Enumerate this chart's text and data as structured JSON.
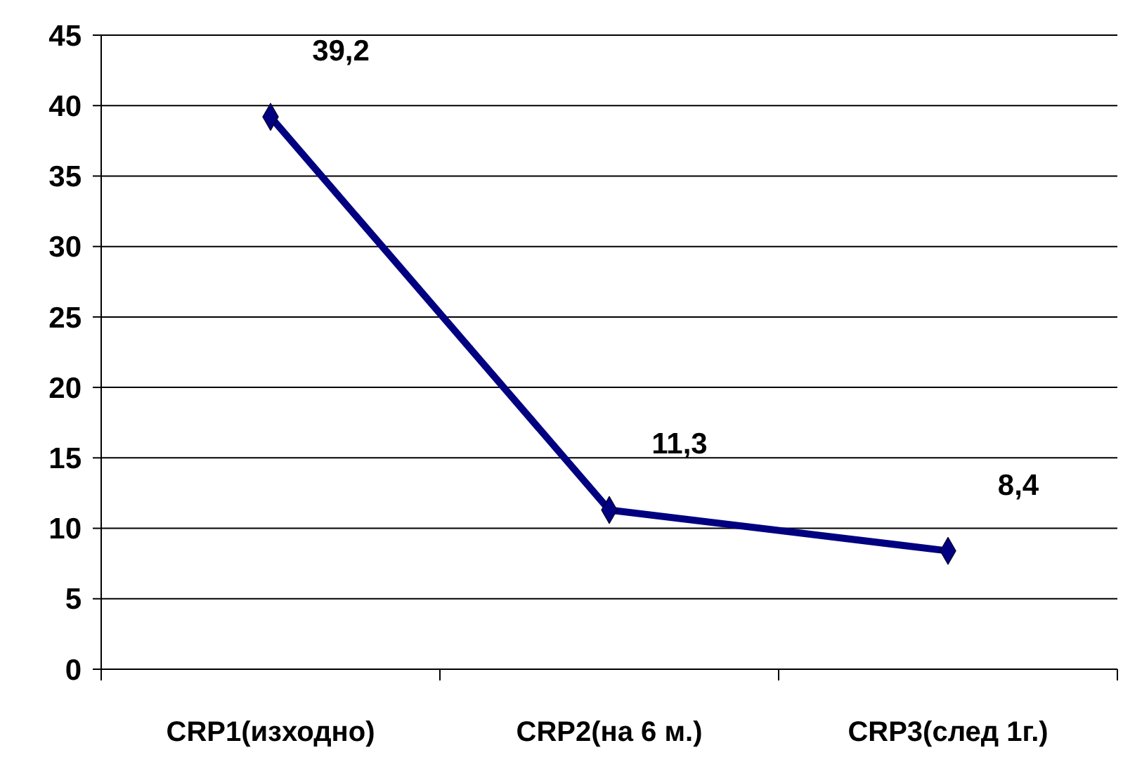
{
  "chart_data": {
    "type": "line",
    "categories": [
      "CRP1(изходно)",
      "CRP2(на 6 м.)",
      "CRP3(след 1г.)"
    ],
    "series": [
      {
        "color": "#000080",
        "values": [
          39.2,
          11.3,
          8.4
        ]
      }
    ],
    "value_labels": [
      "39,2",
      "11,3",
      "8,4"
    ],
    "ylim": [
      0,
      45
    ],
    "yticks": [
      0,
      5,
      10,
      15,
      20,
      25,
      30,
      35,
      40,
      45
    ],
    "grid": "y",
    "marker": "diamond",
    "line_style": "solid"
  }
}
